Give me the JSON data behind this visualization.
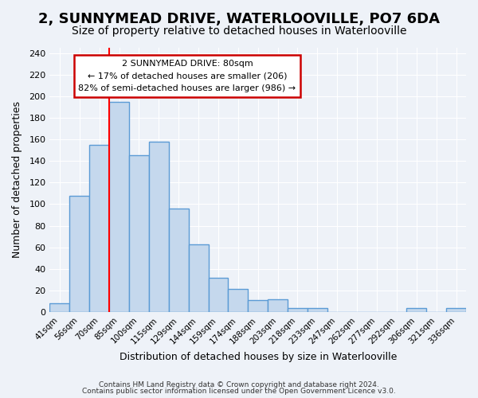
{
  "title": "2, SUNNYMEAD DRIVE, WATERLOOVILLE, PO7 6DA",
  "subtitle": "Size of property relative to detached houses in Waterlooville",
  "xlabel": "Distribution of detached houses by size in Waterlooville",
  "ylabel": "Number of detached properties",
  "bar_labels": [
    "41sqm",
    "56sqm",
    "70sqm",
    "85sqm",
    "100sqm",
    "115sqm",
    "129sqm",
    "144sqm",
    "159sqm",
    "174sqm",
    "188sqm",
    "203sqm",
    "218sqm",
    "233sqm",
    "247sqm",
    "262sqm",
    "277sqm",
    "292sqm",
    "306sqm",
    "321sqm",
    "336sqm"
  ],
  "bar_values": [
    8,
    108,
    155,
    195,
    145,
    158,
    96,
    63,
    32,
    21,
    11,
    12,
    4,
    4,
    0,
    0,
    0,
    0,
    4,
    0,
    4
  ],
  "bar_color": "#c5d8ed",
  "bar_edge_color": "#5b9bd5",
  "bar_edge_width": 1.0,
  "red_line_x": 3,
  "ylim": [
    0,
    245
  ],
  "yticks": [
    0,
    20,
    40,
    60,
    80,
    100,
    120,
    140,
    160,
    180,
    200,
    220,
    240
  ],
  "annotation_title": "2 SUNNYMEAD DRIVE: 80sqm",
  "annotation_line1": "← 17% of detached houses are smaller (206)",
  "annotation_line2": "82% of semi-detached houses are larger (986) →",
  "annotation_box_color": "#ffffff",
  "annotation_box_edge": "#cc0000",
  "footer1": "Contains HM Land Registry data © Crown copyright and database right 2024.",
  "footer2": "Contains public sector information licensed under the Open Government Licence v3.0.",
  "bg_color": "#eef2f8",
  "plot_bg_color": "#eef2f8",
  "grid_color": "#ffffff",
  "title_fontsize": 13,
  "subtitle_fontsize": 10
}
